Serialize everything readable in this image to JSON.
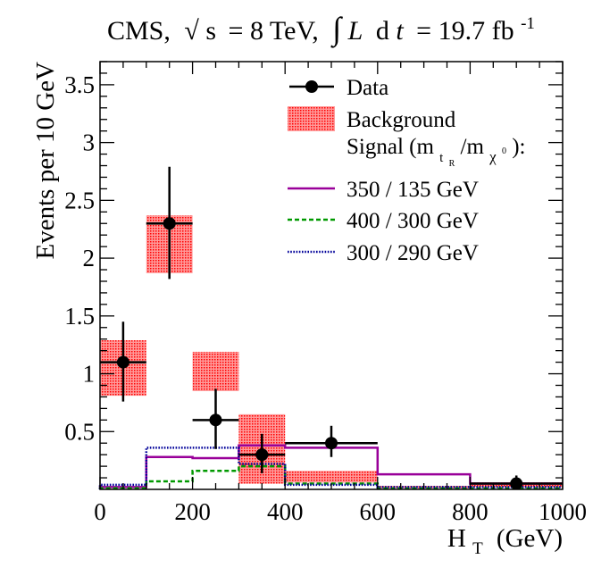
{
  "chart_data": {
    "type": "histogram",
    "title": {
      "experiment": "CMS,",
      "sqrt_symbol": "√",
      "sqrt_arg": "s",
      "energy": "= 8 TeV,",
      "integral_symbol": "∫",
      "lumi_var": "L",
      "lumi_d": "d",
      "lumi_t": "t",
      "lumi_value": "= 19.7 fb",
      "lumi_exp": "-1"
    },
    "xlabel": {
      "main": "H",
      "sub": "T",
      "unit": "(GeV)"
    },
    "ylabel": "Events per 10 GeV",
    "xlim": [
      0,
      1000
    ],
    "ylim": [
      0,
      3.7
    ],
    "x_ticks": [
      0,
      200,
      400,
      600,
      800,
      1000
    ],
    "x_tick_labels": [
      "0",
      "200",
      "400",
      "600",
      "800",
      "1000"
    ],
    "y_ticks": [
      0.5,
      1,
      1.5,
      2,
      2.5,
      3,
      3.5
    ],
    "y_tick_labels": [
      "0.5",
      "1",
      "1.5",
      "2",
      "2.5",
      "3",
      "3.5"
    ],
    "background": {
      "name": "Background",
      "color": "#ff0000",
      "bins": [
        {
          "x0": 0,
          "x1": 100,
          "value": 1.05,
          "err": 0.24
        },
        {
          "x0": 100,
          "x1": 200,
          "value": 2.12,
          "err": 0.25
        },
        {
          "x0": 200,
          "x1": 300,
          "value": 1.02,
          "err": 0.17
        },
        {
          "x0": 300,
          "x1": 400,
          "value": 0.35,
          "err": 0.3
        },
        {
          "x0": 400,
          "x1": 600,
          "value": 0.11,
          "err": 0.05
        },
        {
          "x0": 600,
          "x1": 800,
          "value": 0.02,
          "err": 0.01
        },
        {
          "x0": 800,
          "x1": 1000,
          "value": 0.04,
          "err": 0.02
        }
      ]
    },
    "data": {
      "name": "Data",
      "points": [
        {
          "x": 50,
          "xerr": 50,
          "y": 1.1,
          "ylow": 0.76,
          "yhigh": 1.45
        },
        {
          "x": 150,
          "xerr": 50,
          "y": 2.3,
          "ylow": 1.82,
          "yhigh": 2.79
        },
        {
          "x": 250,
          "xerr": 50,
          "y": 0.6,
          "ylow": 0.35,
          "yhigh": 0.87
        },
        {
          "x": 350,
          "xerr": 50,
          "y": 0.3,
          "ylow": 0.14,
          "yhigh": 0.48
        },
        {
          "x": 500,
          "xerr": 100,
          "y": 0.4,
          "ylow": 0.28,
          "yhigh": 0.55
        },
        {
          "x": 900,
          "xerr": 100,
          "y": 0.05,
          "ylow": 0.01,
          "yhigh": 0.12
        }
      ]
    },
    "signal_header": {
      "prefix": "Signal (m",
      "sub1_main": "t",
      "sub1_sub": "R",
      "slash": "/m",
      "sub2_main": "χ",
      "sub2_sup": "0",
      "suffix": "):"
    },
    "signal_series": [
      {
        "name": "350 / 135 GeV",
        "color": "#990099",
        "dash": "solid",
        "bins": [
          {
            "x0": 0,
            "x1": 100,
            "value": 0.02
          },
          {
            "x0": 100,
            "x1": 200,
            "value": 0.28
          },
          {
            "x0": 200,
            "x1": 300,
            "value": 0.27
          },
          {
            "x0": 300,
            "x1": 400,
            "value": 0.38
          },
          {
            "x0": 400,
            "x1": 600,
            "value": 0.36
          },
          {
            "x0": 600,
            "x1": 800,
            "value": 0.13
          },
          {
            "x0": 800,
            "x1": 1000,
            "value": 0.05
          }
        ]
      },
      {
        "name": "400 / 300 GeV",
        "color": "#009900",
        "dash": "dashed",
        "bins": [
          {
            "x0": 0,
            "x1": 100,
            "value": 0.01
          },
          {
            "x0": 100,
            "x1": 200,
            "value": 0.07
          },
          {
            "x0": 200,
            "x1": 300,
            "value": 0.16
          },
          {
            "x0": 300,
            "x1": 400,
            "value": 0.2
          },
          {
            "x0": 400,
            "x1": 600,
            "value": 0.05
          },
          {
            "x0": 600,
            "x1": 800,
            "value": 0.01
          },
          {
            "x0": 800,
            "x1": 1000,
            "value": 0.01
          }
        ]
      },
      {
        "name": "300 / 290 GeV",
        "color": "#000099",
        "dash": "dotted",
        "bins": [
          {
            "x0": 0,
            "x1": 100,
            "value": 0.04
          },
          {
            "x0": 100,
            "x1": 200,
            "value": 0.36
          },
          {
            "x0": 200,
            "x1": 300,
            "value": 0.36
          },
          {
            "x0": 300,
            "x1": 400,
            "value": 0.22
          },
          {
            "x0": 400,
            "x1": 600,
            "value": 0.04
          },
          {
            "x0": 600,
            "x1": 800,
            "value": 0.02
          },
          {
            "x0": 800,
            "x1": 1000,
            "value": 0.02
          }
        ]
      }
    ],
    "legend_position": "top-right"
  }
}
